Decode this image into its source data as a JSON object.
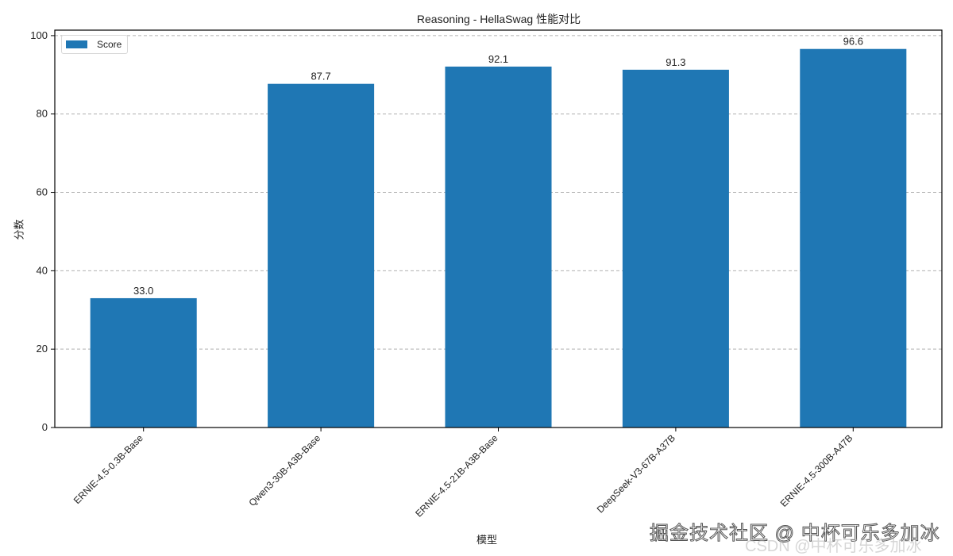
{
  "chart_data": {
    "type": "bar",
    "title": "Reasoning - HellaSwag 性能对比",
    "xlabel": "模型",
    "ylabel": "分数",
    "categories": [
      "ERNIE-4.5-0.3B-Base",
      "Qwen3-30B-A3B-Base",
      "ERNIE-4.5-21B-A3B-Base",
      "DeepSeek-V3-67B-A37B",
      "ERNIE-4.5-300B-A47B"
    ],
    "series": [
      {
        "name": "Score",
        "values": [
          33.0,
          87.7,
          92.1,
          91.3,
          96.6
        ],
        "color": "#1f77b4"
      }
    ],
    "value_labels": [
      "33.0",
      "87.7",
      "92.1",
      "91.3",
      "96.6"
    ],
    "ylim": [
      0,
      101.4
    ],
    "yticks": [
      0,
      20,
      40,
      60,
      80,
      100
    ],
    "grid": "y-dashed",
    "legend_position": "upper left"
  },
  "legend": {
    "label": "Score"
  },
  "watermarks": {
    "primary": "掘金技术社区 @ 中杯可乐多加冰",
    "secondary": "CSDN @中杯可乐多加冰"
  }
}
